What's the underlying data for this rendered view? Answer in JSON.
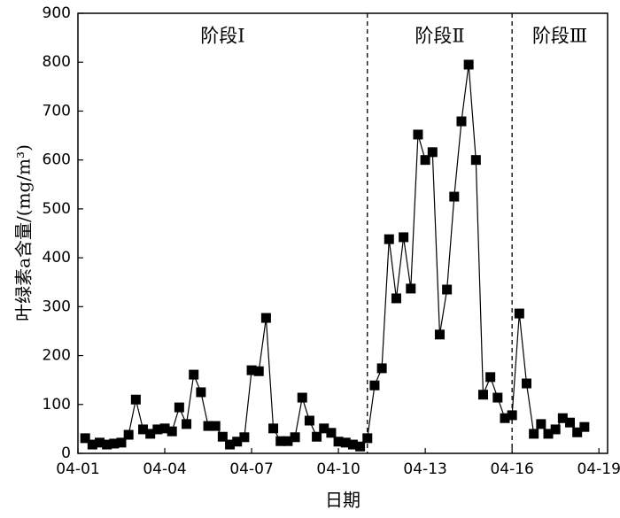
{
  "chart_data": {
    "type": "line",
    "x_label": "日期",
    "y_label": "叶绿素a含量/(mg/m³)",
    "x": [
      1.25,
      1.5,
      1.75,
      2,
      2.25,
      2.5,
      2.75,
      3,
      3.25,
      3.5,
      3.75,
      4,
      4.25,
      4.5,
      4.75,
      5,
      5.25,
      5.5,
      5.75,
      6,
      6.25,
      6.5,
      6.75,
      7,
      7.25,
      7.5,
      7.75,
      8,
      8.25,
      8.5,
      8.75,
      9,
      9.25,
      9.5,
      9.75,
      10,
      10.25,
      10.5,
      10.75,
      11,
      11.25,
      11.5,
      11.75,
      12,
      12.25,
      12.5,
      12.75,
      13,
      13.25,
      13.5,
      13.75,
      14,
      14.25,
      14.5,
      14.75,
      15,
      15.25,
      15.5,
      15.75,
      16,
      16.25,
      16.5,
      16.75,
      17,
      17.25,
      17.5,
      17.75,
      18,
      18.25,
      18.5
    ],
    "values": [
      31,
      18,
      22,
      18,
      20,
      22,
      38,
      110,
      49,
      40,
      49,
      51,
      45,
      94,
      60,
      161,
      125,
      56,
      56,
      34,
      18,
      24,
      33,
      170,
      168,
      277,
      51,
      25,
      25,
      33,
      114,
      67,
      34,
      51,
      42,
      24,
      22,
      18,
      14,
      31,
      139,
      174,
      438,
      317,
      442,
      337,
      652,
      600,
      616,
      243,
      335,
      525,
      679,
      795,
      600,
      120,
      156,
      114,
      72,
      78,
      286,
      143,
      40,
      60,
      40,
      49,
      72,
      63,
      43,
      54
    ],
    "color": "#000000",
    "marker": "square",
    "xlim": [
      1,
      19.3
    ],
    "xticks": [
      {
        "value": 1,
        "label": "04-01"
      },
      {
        "value": 4,
        "label": "04-04"
      },
      {
        "value": 7,
        "label": "04-07"
      },
      {
        "value": 10,
        "label": "04-10"
      },
      {
        "value": 13,
        "label": "04-13"
      },
      {
        "value": 16,
        "label": "04-16"
      },
      {
        "value": 19,
        "label": "04-19"
      }
    ],
    "ylim": [
      0,
      900
    ],
    "yticks": [
      0,
      100,
      200,
      300,
      400,
      500,
      600,
      700,
      800,
      900
    ],
    "dividers": [
      11,
      16
    ],
    "annotations": [
      "阶段Ⅰ",
      "阶段Ⅱ",
      "阶段Ⅲ"
    ]
  }
}
